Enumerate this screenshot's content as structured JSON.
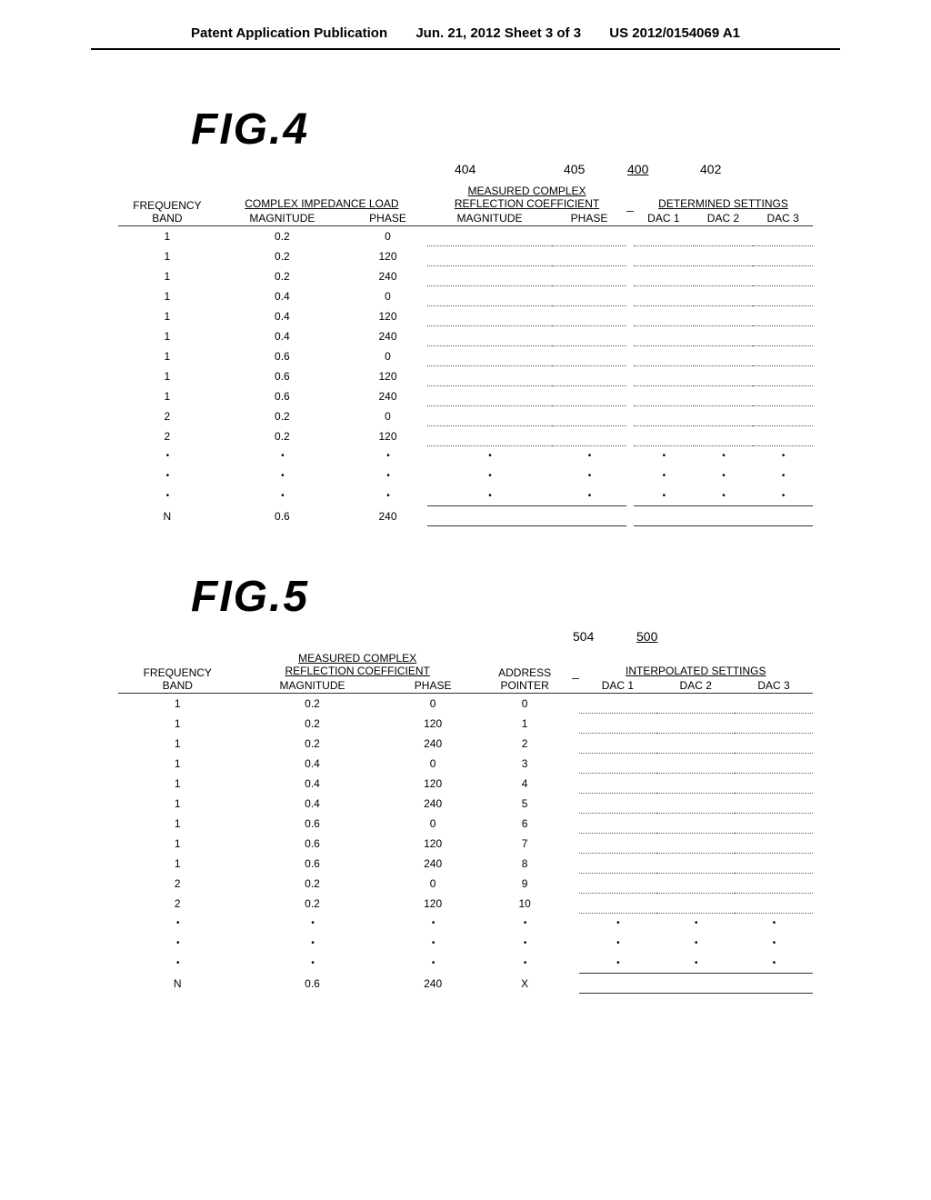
{
  "header": {
    "left": "Patent Application Publication",
    "center": "Jun. 21, 2012  Sheet 3 of 3",
    "right": "US 2012/0154069 A1"
  },
  "fig4": {
    "title": "FIG.4",
    "refs": {
      "r404": "404",
      "r405": "405",
      "r400": "400",
      "r402": "402"
    },
    "headers": {
      "freq": "FREQUENCY\nBAND",
      "complex_load": "COMPLEX IMPEDANCE LOAD",
      "magnitude": "MAGNITUDE",
      "phase": "PHASE",
      "measured": "MEASURED COMPLEX\nREFLECTION COEFFICIENT",
      "mag2": "MAGNITUDE",
      "phase2": "PHASE",
      "determined": "DETERMINED SETTINGS",
      "dac1": "DAC 1",
      "dac2": "DAC 2",
      "dac3": "DAC 3"
    },
    "rows": [
      {
        "band": "1",
        "mag": "0.2",
        "phase": "0"
      },
      {
        "band": "1",
        "mag": "0.2",
        "phase": "120"
      },
      {
        "band": "1",
        "mag": "0.2",
        "phase": "240"
      },
      {
        "band": "1",
        "mag": "0.4",
        "phase": "0"
      },
      {
        "band": "1",
        "mag": "0.4",
        "phase": "120"
      },
      {
        "band": "1",
        "mag": "0.4",
        "phase": "240"
      },
      {
        "band": "1",
        "mag": "0.6",
        "phase": "0"
      },
      {
        "band": "1",
        "mag": "0.6",
        "phase": "120"
      },
      {
        "band": "1",
        "mag": "0.6",
        "phase": "240"
      },
      {
        "band": "2",
        "mag": "0.2",
        "phase": "0"
      },
      {
        "band": "2",
        "mag": "0.2",
        "phase": "120"
      }
    ],
    "last": {
      "band": "N",
      "mag": "0.6",
      "phase": "240"
    }
  },
  "fig5": {
    "title": "FIG.5",
    "refs": {
      "r504": "504",
      "r500": "500"
    },
    "headers": {
      "freq": "FREQUENCY\nBAND",
      "measured": "MEASURED COMPLEX\nREFLECTION COEFFICIENT",
      "magnitude": "MAGNITUDE",
      "phase": "PHASE",
      "addr": "ADDRESS\nPOINTER",
      "interp": "INTERPOLATED SETTINGS",
      "dac1": "DAC 1",
      "dac2": "DAC 2",
      "dac3": "DAC 3"
    },
    "rows": [
      {
        "band": "1",
        "mag": "0.2",
        "phase": "0",
        "addr": "0"
      },
      {
        "band": "1",
        "mag": "0.2",
        "phase": "120",
        "addr": "1"
      },
      {
        "band": "1",
        "mag": "0.2",
        "phase": "240",
        "addr": "2"
      },
      {
        "band": "1",
        "mag": "0.4",
        "phase": "0",
        "addr": "3"
      },
      {
        "band": "1",
        "mag": "0.4",
        "phase": "120",
        "addr": "4"
      },
      {
        "band": "1",
        "mag": "0.4",
        "phase": "240",
        "addr": "5"
      },
      {
        "band": "1",
        "mag": "0.6",
        "phase": "0",
        "addr": "6"
      },
      {
        "band": "1",
        "mag": "0.6",
        "phase": "120",
        "addr": "7"
      },
      {
        "band": "1",
        "mag": "0.6",
        "phase": "240",
        "addr": "8"
      },
      {
        "band": "2",
        "mag": "0.2",
        "phase": "0",
        "addr": "9"
      },
      {
        "band": "2",
        "mag": "0.2",
        "phase": "120",
        "addr": "10"
      }
    ],
    "last": {
      "band": "N",
      "mag": "0.6",
      "phase": "240",
      "addr": "X"
    }
  },
  "dots": "•"
}
